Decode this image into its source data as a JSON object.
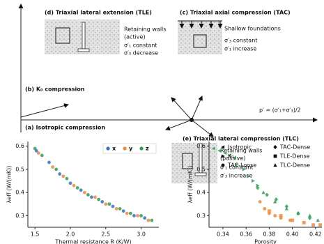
{
  "diagram": {
    "tle": {
      "title": "(d) Triaxial lateral extension (TLE)",
      "lines": [
        "Retaining walls",
        "(active)",
        "σ′₁ constant",
        "σ′₃ decrease"
      ]
    },
    "tac": {
      "title": "(c) Triaxial axial compression (TAC)",
      "lines": [
        "Shallow foundations",
        "σ′₃ constant",
        "σ′₁ increase"
      ]
    },
    "k0": {
      "title": "(b) K₀ compression"
    },
    "iso": {
      "title": "(a) Isotropic compression"
    },
    "axis_label": "p′ = (σ′₁+σ′₃)/2",
    "tlc": {
      "title": "(e) Triaxial lateral compression (TLC)",
      "lines": [
        "Retaining walls",
        "(passive)",
        "σ′₁ constant",
        "σ′₃ increase"
      ]
    }
  },
  "chart_data": [
    {
      "type": "scatter",
      "xlabel": "Thermal resistance R (K/W)",
      "ylabel": "λeff (W/(mK))",
      "xlim": [
        1.4,
        3.25
      ],
      "ylim": [
        0.25,
        0.62
      ],
      "xticks": [
        1.5,
        {
          "value": 2,
          "label": "2.0"
        },
        2.5,
        {
          "value": 3,
          "label": "3.0"
        }
      ],
      "yticks": [
        0.3,
        0.4,
        0.5,
        0.6
      ],
      "legend": "upper right",
      "series": [
        {
          "name": "x",
          "color": "#3b6fc9",
          "marker": "circle",
          "x": [
            1.52,
            1.7,
            1.85,
            2.0,
            2.15,
            2.3,
            2.45,
            2.6,
            2.75,
            2.9,
            3.05
          ],
          "values": [
            0.58,
            0.53,
            0.48,
            0.44,
            0.41,
            0.38,
            0.36,
            0.34,
            0.32,
            0.3,
            0.29
          ]
        },
        {
          "name": "y",
          "color": "#f08a3c",
          "marker": "circle",
          "x": [
            1.55,
            1.75,
            1.9,
            2.05,
            2.2,
            2.35,
            2.5,
            2.65,
            2.8,
            2.95,
            3.1
          ],
          "values": [
            0.57,
            0.51,
            0.47,
            0.43,
            0.4,
            0.38,
            0.35,
            0.33,
            0.31,
            0.3,
            0.28
          ]
        },
        {
          "name": "z",
          "color": "#2e9e57",
          "marker": "circle",
          "x": [
            1.5,
            1.6,
            1.8,
            1.95,
            2.1,
            2.25,
            2.4,
            2.55,
            2.7,
            2.85,
            3.0,
            3.15
          ],
          "values": [
            0.59,
            0.56,
            0.5,
            0.46,
            0.42,
            0.39,
            0.37,
            0.35,
            0.33,
            0.31,
            0.3,
            0.28
          ]
        }
      ]
    },
    {
      "type": "scatter",
      "xlabel": "Porosity",
      "ylabel": "λeff (W/(mK))",
      "xlim": [
        0.328,
        0.4255
      ],
      "ylim": [
        0.25,
        0.62
      ],
      "xticks": [
        0.34,
        0.36,
        0.38,
        {
          "value": 0.4,
          "label": "0.40"
        },
        0.42
      ],
      "yticks": [
        0.3,
        0.4,
        0.5,
        0.6
      ],
      "legend": "upper right",
      "series": [
        {
          "name": "Isotropic",
          "color": "#2e9e57",
          "marker": "tri-left",
          "x": [
            0.332,
            0.337,
            0.342,
            0.346,
            0.35
          ],
          "values": [
            0.59,
            0.58,
            0.57,
            0.56,
            0.55
          ]
        },
        {
          "name": "K₀",
          "color": "#2e9e57",
          "marker": "tri-right",
          "x": [
            0.352,
            0.358,
            0.362,
            0.366,
            0.37
          ],
          "values": [
            0.52,
            0.5,
            0.47,
            0.45,
            0.43
          ]
        },
        {
          "name": "TAC-Loose",
          "color": "#f08a3c",
          "marker": "circle",
          "x": [
            0.372,
            0.376,
            0.38,
            0.385,
            0.39,
            0.398
          ],
          "values": [
            0.36,
            0.33,
            0.31,
            0.3,
            0.29,
            0.28
          ]
        },
        {
          "name": "TAC-Dense",
          "color": "#2e9e57",
          "marker": "diamond",
          "x": [
            0.37,
            0.378,
            0.386,
            0.395,
            0.405,
            0.415
          ],
          "values": [
            0.42,
            0.39,
            0.37,
            0.34,
            0.31,
            0.29
          ]
        },
        {
          "name": "TLE-Dense",
          "color": "#f08a3c",
          "marker": "square",
          "x": [
            0.38,
            0.39,
            0.4,
            0.41,
            0.418,
            0.424
          ],
          "values": [
            0.32,
            0.3,
            0.28,
            0.27,
            0.26,
            0.26
          ]
        },
        {
          "name": "TLC-Dense",
          "color": "#2e9e57",
          "marker": "tri-up",
          "x": [
            0.375,
            0.385,
            0.395,
            0.405,
            0.415,
            0.422
          ],
          "values": [
            0.4,
            0.36,
            0.33,
            0.31,
            0.3,
            0.28
          ]
        }
      ]
    }
  ]
}
